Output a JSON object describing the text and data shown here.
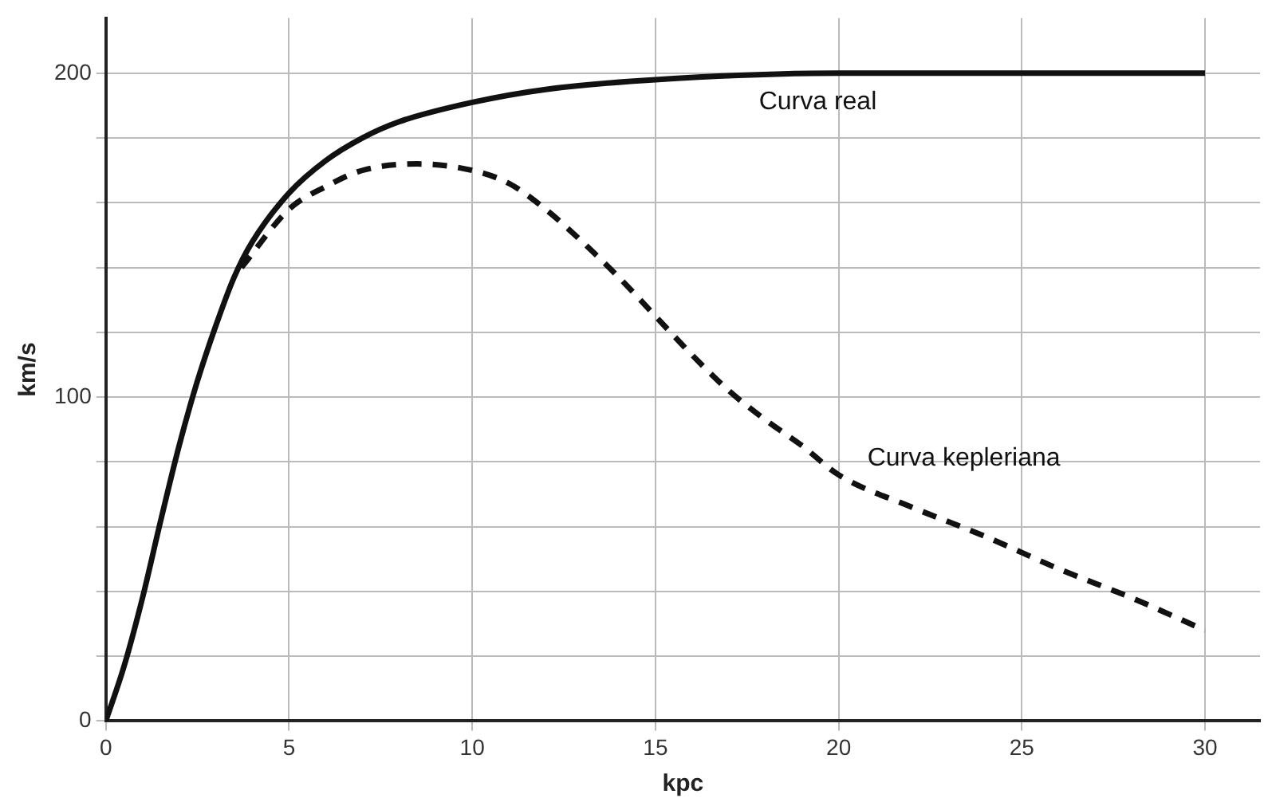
{
  "chart_data": {
    "type": "line",
    "xlabel": "kpc",
    "ylabel": "km/s",
    "xlim": [
      0,
      31.5
    ],
    "ylim": [
      0,
      217
    ],
    "xticks": [
      0,
      5,
      10,
      15,
      20,
      25,
      30
    ],
    "yticks": [
      0,
      {
        "value": 20,
        "label": null
      },
      {
        "value": 40,
        "label": null
      },
      {
        "value": 60,
        "label": null
      },
      {
        "value": 80,
        "label": null
      },
      100,
      {
        "value": 120,
        "label": null
      },
      {
        "value": 140,
        "label": null
      },
      {
        "value": 160,
        "label": null
      },
      {
        "value": 180,
        "label": null
      },
      200
    ],
    "grid": true,
    "legend": false,
    "marker": "none",
    "series": [
      {
        "name": "Curva real",
        "color": "#111111",
        "line_style": "solid",
        "x": [
          0,
          0.5,
          1,
          1.5,
          2,
          2.5,
          3,
          3.5,
          4,
          5,
          6,
          7,
          8,
          10,
          12,
          15,
          20,
          25,
          30
        ],
        "values": [
          0,
          17,
          38,
          62,
          85,
          105,
          122,
          137,
          148,
          163,
          173,
          180,
          185,
          191,
          195,
          198,
          200,
          200,
          200
        ]
      },
      {
        "name": "Curva kepleriana",
        "color": "#111111",
        "line_style": "dashed",
        "x": [
          3.7,
          5,
          6,
          7,
          8.5,
          10,
          11,
          12,
          13,
          14,
          15,
          16,
          17,
          18,
          19,
          20,
          22,
          24,
          26,
          28,
          30
        ],
        "values": [
          140,
          158,
          165,
          170,
          172,
          170,
          166,
          158,
          148,
          137,
          125,
          113,
          102,
          93,
          85,
          76,
          66,
          57,
          47,
          38,
          28
        ]
      }
    ]
  }
}
